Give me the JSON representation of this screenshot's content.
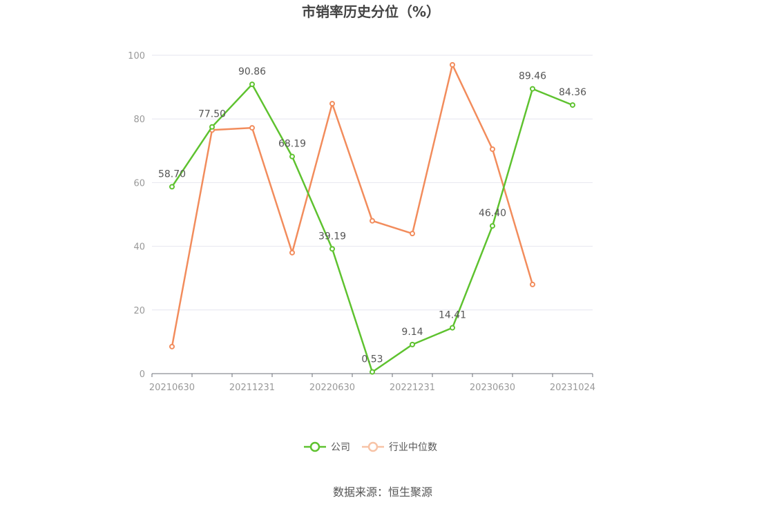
{
  "chart_data": {
    "type": "line",
    "title": "市销率历史分位（%）",
    "x": [
      "20210630",
      "20210930",
      "20211231",
      "20220331",
      "20220630",
      "20220930",
      "20221231",
      "20230331",
      "20230630",
      "20230930",
      "20231024"
    ],
    "x_tick_labels": [
      "20210630",
      "20211231",
      "20220630",
      "20221231",
      "20230630",
      "20231024"
    ],
    "y_ticks": [
      "0",
      "20",
      "40",
      "60",
      "80",
      "100"
    ],
    "ylim": [
      0,
      100
    ],
    "grid": true,
    "legend_position": "bottom",
    "series": [
      {
        "name": "公司",
        "color": "#5ec22f",
        "values": [
          58.7,
          77.5,
          90.86,
          68.19,
          39.19,
          0.53,
          9.14,
          14.41,
          46.4,
          89.46,
          84.36
        ],
        "labels": [
          "58.70",
          "77.50",
          "90.86",
          "68.19",
          "39.19",
          "0.53",
          "9.14",
          "14.41",
          "46.40",
          "89.46",
          "84.36"
        ]
      },
      {
        "name": "行业中位数",
        "color": "#f28c5c",
        "values": [
          8.5,
          76.5,
          77.2,
          38.0,
          84.8,
          48.0,
          44.0,
          97.0,
          70.5,
          28.0,
          null
        ]
      }
    ],
    "source": "数据来源：恒生聚源"
  }
}
